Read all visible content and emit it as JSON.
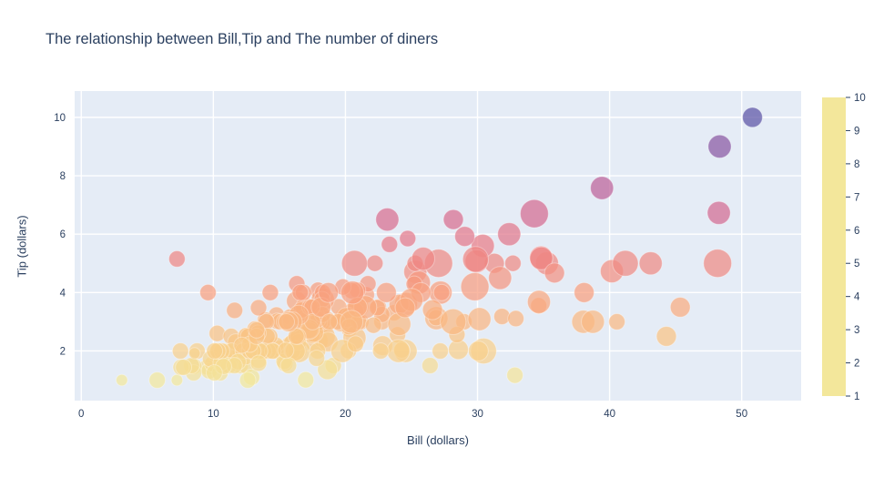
{
  "title": "The relationship between Bill,Tip and The number of diners",
  "chart_data": {
    "type": "scatter",
    "subtype": "bubble",
    "title": "The relationship between Bill,Tip and The number of diners",
    "xlabel": "Bill (dollars)",
    "ylabel": "Tip (dollars)",
    "xlim": [
      -0.5,
      54.5
    ],
    "ylim": [
      0.3,
      10.9
    ],
    "x_ticks": [
      0,
      10,
      20,
      30,
      40,
      50
    ],
    "y_ticks": [
      2,
      4,
      6,
      8,
      10
    ],
    "grid": true,
    "legend_position": "colorbar-right",
    "plot_bg": "#e5ecf6",
    "grid_color": "#ffffff",
    "text_color": "#2a3f5f",
    "color_encodes": "tip",
    "size_encodes": "number of diners",
    "colorbar": {
      "min": 1,
      "max": 10,
      "ticks": [
        1,
        2,
        3,
        4,
        5,
        6,
        7,
        8,
        9,
        10
      ]
    },
    "colorscale": {
      "name": "Sunset",
      "colors": [
        "#f3e79b",
        "#fac484",
        "#f8a07e",
        "#eb7f86",
        "#ce6693",
        "#a059a0",
        "#5c53a5"
      ]
    },
    "points_format": [
      "bill",
      "tip",
      "diners"
    ],
    "points": [
      [
        16.99,
        1.01,
        2
      ],
      [
        10.34,
        1.66,
        3
      ],
      [
        21.01,
        3.5,
        3
      ],
      [
        23.68,
        3.31,
        2
      ],
      [
        24.59,
        3.61,
        4
      ],
      [
        25.29,
        4.71,
        4
      ],
      [
        8.77,
        2.0,
        2
      ],
      [
        26.88,
        3.12,
        4
      ],
      [
        15.04,
        1.96,
        2
      ],
      [
        14.78,
        3.23,
        2
      ],
      [
        10.27,
        1.71,
        2
      ],
      [
        35.26,
        5.0,
        4
      ],
      [
        15.42,
        1.57,
        2
      ],
      [
        18.43,
        3.0,
        4
      ],
      [
        14.83,
        3.02,
        2
      ],
      [
        21.58,
        3.92,
        2
      ],
      [
        10.33,
        1.67,
        3
      ],
      [
        16.29,
        3.71,
        3
      ],
      [
        16.97,
        3.5,
        3
      ],
      [
        20.65,
        3.35,
        3
      ],
      [
        17.92,
        4.08,
        2
      ],
      [
        20.29,
        2.75,
        2
      ],
      [
        15.77,
        2.23,
        2
      ],
      [
        39.42,
        7.58,
        4
      ],
      [
        19.82,
        3.18,
        2
      ],
      [
        17.81,
        2.34,
        4
      ],
      [
        13.37,
        2.0,
        2
      ],
      [
        12.69,
        2.0,
        2
      ],
      [
        21.7,
        4.3,
        2
      ],
      [
        19.65,
        3.0,
        3
      ],
      [
        9.55,
        1.45,
        2
      ],
      [
        18.35,
        2.5,
        4
      ],
      [
        15.06,
        3.0,
        2
      ],
      [
        20.69,
        2.45,
        4
      ],
      [
        17.78,
        3.27,
        2
      ],
      [
        24.06,
        3.6,
        3
      ],
      [
        16.31,
        2.0,
        3
      ],
      [
        16.93,
        3.07,
        3
      ],
      [
        18.69,
        2.31,
        3
      ],
      [
        31.27,
        5.0,
        3
      ],
      [
        16.04,
        2.24,
        3
      ],
      [
        17.46,
        2.54,
        2
      ],
      [
        13.94,
        3.06,
        2
      ],
      [
        9.68,
        1.32,
        2
      ],
      [
        30.4,
        5.6,
        4
      ],
      [
        18.29,
        3.0,
        2
      ],
      [
        22.23,
        5.0,
        2
      ],
      [
        32.4,
        6.0,
        4
      ],
      [
        28.55,
        2.05,
        3
      ],
      [
        18.04,
        3.0,
        2
      ],
      [
        12.54,
        2.5,
        2
      ],
      [
        10.29,
        2.6,
        2
      ],
      [
        34.81,
        5.2,
        4
      ],
      [
        9.94,
        1.56,
        2
      ],
      [
        25.56,
        4.34,
        4
      ],
      [
        19.49,
        3.51,
        2
      ],
      [
        38.01,
        3.0,
        4
      ],
      [
        26.41,
        1.5,
        2
      ],
      [
        11.24,
        1.76,
        2
      ],
      [
        48.27,
        6.73,
        4
      ],
      [
        20.29,
        3.21,
        2
      ],
      [
        13.81,
        2.0,
        2
      ],
      [
        11.02,
        1.98,
        2
      ],
      [
        18.29,
        3.76,
        4
      ],
      [
        17.59,
        2.64,
        3
      ],
      [
        20.08,
        3.15,
        3
      ],
      [
        16.45,
        2.47,
        2
      ],
      [
        3.07,
        1.0,
        1
      ],
      [
        20.23,
        2.01,
        2
      ],
      [
        15.01,
        2.09,
        2
      ],
      [
        12.02,
        1.97,
        2
      ],
      [
        17.07,
        3.0,
        3
      ],
      [
        26.86,
        3.14,
        2
      ],
      [
        25.28,
        5.0,
        2
      ],
      [
        14.73,
        2.2,
        2
      ],
      [
        10.51,
        1.25,
        2
      ],
      [
        17.92,
        3.08,
        2
      ],
      [
        27.2,
        4.0,
        4
      ],
      [
        22.76,
        3.0,
        2
      ],
      [
        17.29,
        2.71,
        2
      ],
      [
        19.44,
        3.0,
        2
      ],
      [
        16.66,
        3.4,
        2
      ],
      [
        10.07,
        1.83,
        1
      ],
      [
        32.68,
        5.0,
        2
      ],
      [
        15.98,
        2.03,
        2
      ],
      [
        34.83,
        5.17,
        4
      ],
      [
        13.03,
        2.0,
        2
      ],
      [
        18.28,
        4.0,
        2
      ],
      [
        24.71,
        5.85,
        2
      ],
      [
        21.16,
        3.0,
        2
      ],
      [
        28.97,
        3.0,
        2
      ],
      [
        22.49,
        3.5,
        2
      ],
      [
        5.75,
        1.0,
        2
      ],
      [
        16.32,
        4.3,
        2
      ],
      [
        22.75,
        3.25,
        2
      ],
      [
        40.17,
        4.73,
        4
      ],
      [
        27.28,
        4.0,
        2
      ],
      [
        12.03,
        1.5,
        2
      ],
      [
        21.01,
        3.0,
        2
      ],
      [
        12.46,
        1.5,
        2
      ],
      [
        11.35,
        2.5,
        2
      ],
      [
        15.38,
        3.0,
        2
      ],
      [
        44.3,
        2.5,
        3
      ],
      [
        22.42,
        3.48,
        2
      ],
      [
        20.92,
        4.08,
        2
      ],
      [
        15.36,
        1.64,
        2
      ],
      [
        20.49,
        4.06,
        2
      ],
      [
        25.21,
        4.29,
        2
      ],
      [
        18.24,
        3.76,
        2
      ],
      [
        14.31,
        4.0,
        2
      ],
      [
        14.0,
        3.0,
        2
      ],
      [
        7.25,
        1.0,
        1
      ],
      [
        38.07,
        4.0,
        3
      ],
      [
        23.95,
        2.55,
        2
      ],
      [
        25.71,
        4.0,
        3
      ],
      [
        17.31,
        3.5,
        2
      ],
      [
        29.93,
        5.07,
        4
      ],
      [
        10.65,
        1.5,
        2
      ],
      [
        12.43,
        1.8,
        2
      ],
      [
        24.08,
        2.92,
        4
      ],
      [
        11.69,
        2.31,
        2
      ],
      [
        13.42,
        1.68,
        2
      ],
      [
        14.26,
        2.5,
        2
      ],
      [
        15.95,
        2.0,
        2
      ],
      [
        12.48,
        2.52,
        2
      ],
      [
        29.8,
        4.2,
        6
      ],
      [
        8.52,
        1.48,
        2
      ],
      [
        14.52,
        2.0,
        2
      ],
      [
        11.38,
        2.0,
        2
      ],
      [
        22.82,
        2.18,
        3
      ],
      [
        19.08,
        1.5,
        2
      ],
      [
        20.27,
        2.83,
        2
      ],
      [
        11.17,
        1.5,
        2
      ],
      [
        12.26,
        2.0,
        2
      ],
      [
        18.26,
        3.25,
        2
      ],
      [
        8.51,
        1.25,
        2
      ],
      [
        10.33,
        2.0,
        2
      ],
      [
        14.15,
        2.0,
        2
      ],
      [
        16.0,
        2.0,
        2
      ],
      [
        13.16,
        2.75,
        2
      ],
      [
        17.47,
        3.5,
        2
      ],
      [
        34.3,
        6.7,
        6
      ],
      [
        41.19,
        5.0,
        5
      ],
      [
        27.05,
        5.0,
        6
      ],
      [
        16.43,
        2.3,
        2
      ],
      [
        8.35,
        1.5,
        2
      ],
      [
        18.64,
        1.36,
        3
      ],
      [
        11.87,
        1.63,
        2
      ],
      [
        9.78,
        1.73,
        2
      ],
      [
        7.51,
        2.0,
        2
      ],
      [
        14.07,
        2.5,
        2
      ],
      [
        13.13,
        2.0,
        2
      ],
      [
        17.26,
        2.74,
        3
      ],
      [
        24.55,
        2.0,
        4
      ],
      [
        19.77,
        2.0,
        4
      ],
      [
        29.85,
        5.14,
        5
      ],
      [
        48.17,
        5.0,
        6
      ],
      [
        25.0,
        3.75,
        4
      ],
      [
        13.39,
        2.61,
        2
      ],
      [
        16.49,
        2.0,
        4
      ],
      [
        21.5,
        3.5,
        4
      ],
      [
        12.66,
        2.5,
        2
      ],
      [
        16.21,
        2.0,
        3
      ],
      [
        13.81,
        2.0,
        2
      ],
      [
        17.51,
        3.0,
        2
      ],
      [
        24.52,
        3.48,
        3
      ],
      [
        20.76,
        2.24,
        2
      ],
      [
        31.71,
        4.5,
        4
      ],
      [
        10.59,
        1.61,
        2
      ],
      [
        10.63,
        2.0,
        2
      ],
      [
        50.81,
        10.0,
        3
      ],
      [
        15.81,
        3.16,
        2
      ],
      [
        7.25,
        5.15,
        2
      ],
      [
        31.85,
        3.18,
        2
      ],
      [
        16.82,
        4.0,
        2
      ],
      [
        32.9,
        3.11,
        2
      ],
      [
        17.89,
        2.0,
        2
      ],
      [
        14.48,
        2.0,
        2
      ],
      [
        9.6,
        4.0,
        2
      ],
      [
        34.63,
        3.55,
        2
      ],
      [
        34.65,
        3.68,
        4
      ],
      [
        23.33,
        5.65,
        2
      ],
      [
        45.35,
        3.5,
        3
      ],
      [
        23.17,
        6.5,
        4
      ],
      [
        40.55,
        3.0,
        2
      ],
      [
        20.69,
        5.0,
        5
      ],
      [
        20.9,
        3.5,
        3
      ],
      [
        30.46,
        2.0,
        5
      ],
      [
        18.15,
        3.5,
        3
      ],
      [
        23.1,
        4.0,
        3
      ],
      [
        15.69,
        1.5,
        2
      ],
      [
        19.81,
        4.19,
        2
      ],
      [
        28.44,
        2.56,
        2
      ],
      [
        15.48,
        2.02,
        2
      ],
      [
        16.58,
        4.0,
        2
      ],
      [
        7.56,
        1.44,
        2
      ],
      [
        10.34,
        2.0,
        2
      ],
      [
        43.11,
        5.0,
        4
      ],
      [
        13.0,
        2.0,
        2
      ],
      [
        13.51,
        2.0,
        2
      ],
      [
        18.71,
        4.0,
        3
      ],
      [
        12.74,
        2.01,
        2
      ],
      [
        13.0,
        2.0,
        2
      ],
      [
        16.4,
        2.5,
        2
      ],
      [
        20.53,
        4.0,
        4
      ],
      [
        16.47,
        3.23,
        3
      ],
      [
        26.59,
        3.41,
        3
      ],
      [
        38.73,
        3.0,
        4
      ],
      [
        24.27,
        2.03,
        2
      ],
      [
        12.76,
        2.23,
        2
      ],
      [
        30.06,
        2.0,
        3
      ],
      [
        25.89,
        5.16,
        4
      ],
      [
        48.33,
        9.0,
        4
      ],
      [
        13.27,
        2.5,
        2
      ],
      [
        28.17,
        6.5,
        3
      ],
      [
        12.9,
        1.1,
        2
      ],
      [
        28.15,
        3.0,
        5
      ],
      [
        11.59,
        1.5,
        2
      ],
      [
        7.74,
        1.44,
        2
      ],
      [
        30.14,
        3.09,
        4
      ],
      [
        12.16,
        2.2,
        2
      ],
      [
        13.42,
        3.48,
        2
      ],
      [
        8.58,
        1.92,
        1
      ],
      [
        15.98,
        3.0,
        3
      ],
      [
        13.42,
        1.58,
        2
      ],
      [
        16.27,
        2.5,
        2
      ],
      [
        10.09,
        2.0,
        2
      ],
      [
        20.45,
        3.0,
        4
      ],
      [
        13.28,
        2.72,
        2
      ],
      [
        22.12,
        2.88,
        2
      ],
      [
        24.01,
        2.0,
        4
      ],
      [
        15.69,
        3.0,
        3
      ],
      [
        11.61,
        3.39,
        2
      ],
      [
        10.77,
        1.47,
        2
      ],
      [
        15.53,
        3.0,
        2
      ],
      [
        10.07,
        1.25,
        2
      ],
      [
        12.6,
        1.0,
        2
      ],
      [
        32.83,
        1.17,
        2
      ],
      [
        35.83,
        4.67,
        3
      ],
      [
        29.03,
        5.92,
        3
      ],
      [
        27.18,
        2.0,
        2
      ],
      [
        22.67,
        2.0,
        2
      ],
      [
        17.82,
        1.75,
        2
      ],
      [
        18.78,
        3.0,
        2
      ]
    ]
  }
}
